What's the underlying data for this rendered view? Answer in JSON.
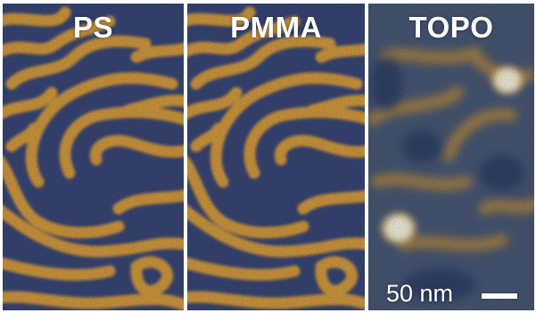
{
  "panels": [
    {
      "label": "PS"
    },
    {
      "label": "PMMA"
    },
    {
      "label": "TOPO"
    }
  ],
  "scale_bar": {
    "label": "50 nm"
  },
  "colors": {
    "stripe_light": "#e0a442",
    "stripe_dark": "#3c4b7e",
    "topo_bright": "#ffffff"
  }
}
